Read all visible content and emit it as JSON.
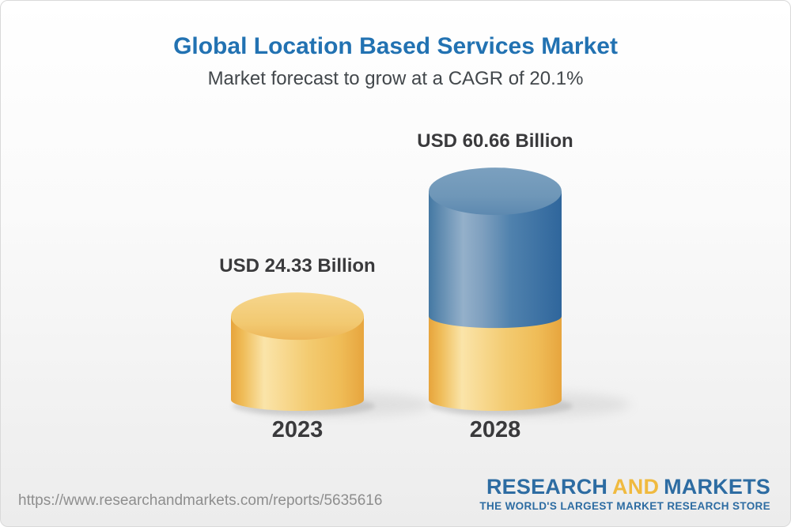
{
  "header": {
    "title": "Global Location Based Services Market",
    "subtitle": "Market forecast to grow at a CAGR of 20.1%"
  },
  "chart_data": {
    "type": "bar",
    "title": "Global Location Based Services Market",
    "subtitle": "Market forecast to grow at a CAGR of 20.1%",
    "cagr_percent": 20.1,
    "unit": "USD Billion",
    "categories": [
      "2023",
      "2028"
    ],
    "values": [
      24.33,
      60.66
    ],
    "value_labels": [
      "USD 24.33 Billion",
      "USD 60.66 Billion"
    ],
    "bars": [
      {
        "category": "2023",
        "total": 24.33,
        "segments": [
          {
            "value": 24.33,
            "palette": "gold"
          }
        ]
      },
      {
        "category": "2028",
        "total": 60.66,
        "segments": [
          {
            "value": 24.33,
            "palette": "gold"
          },
          {
            "value": 36.33,
            "palette": "blue"
          }
        ]
      }
    ],
    "palette_colors": {
      "gold": "#F2C661",
      "blue": "#4479AB"
    },
    "ylim": [
      0,
      65
    ],
    "grid": false,
    "legend": false
  },
  "footer": {
    "url": "https://www.researchandmarkets.com/reports/5635616",
    "logo": {
      "word_research": "RESEARCH",
      "word_and": "AND",
      "word_markets": "MARKETS",
      "tagline": "THE WORLD'S LARGEST MARKET RESEARCH STORE"
    }
  },
  "colors": {
    "title_blue": "#2272B2",
    "label_dark": "#3A3A3C",
    "url_gray": "#8E8E8E",
    "logo_blue": "#2D6CA2",
    "logo_gold": "#F0BA3F",
    "bar_gold": "#F2C661",
    "bar_blue": "#4479AB"
  }
}
